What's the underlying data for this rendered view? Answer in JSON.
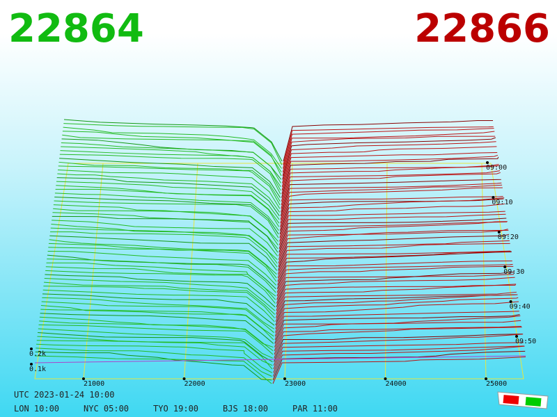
{
  "bid": "22864",
  "ask": "22866",
  "price_axis": [
    21000,
    22000,
    23000,
    24000,
    25000
  ],
  "depth_axis": [
    "0.2k",
    "0.1k"
  ],
  "time_axis": [
    "09:00",
    "09:10",
    "09:20",
    "09:30",
    "09:40",
    "09:50"
  ],
  "footer": {
    "utc": "UTC 2023-01-24 10:00",
    "clocks": [
      "LON 10:00",
      "NYC 05:00",
      "TYO 19:00",
      "BJS 18:00",
      "PAR 11:00"
    ]
  }
}
